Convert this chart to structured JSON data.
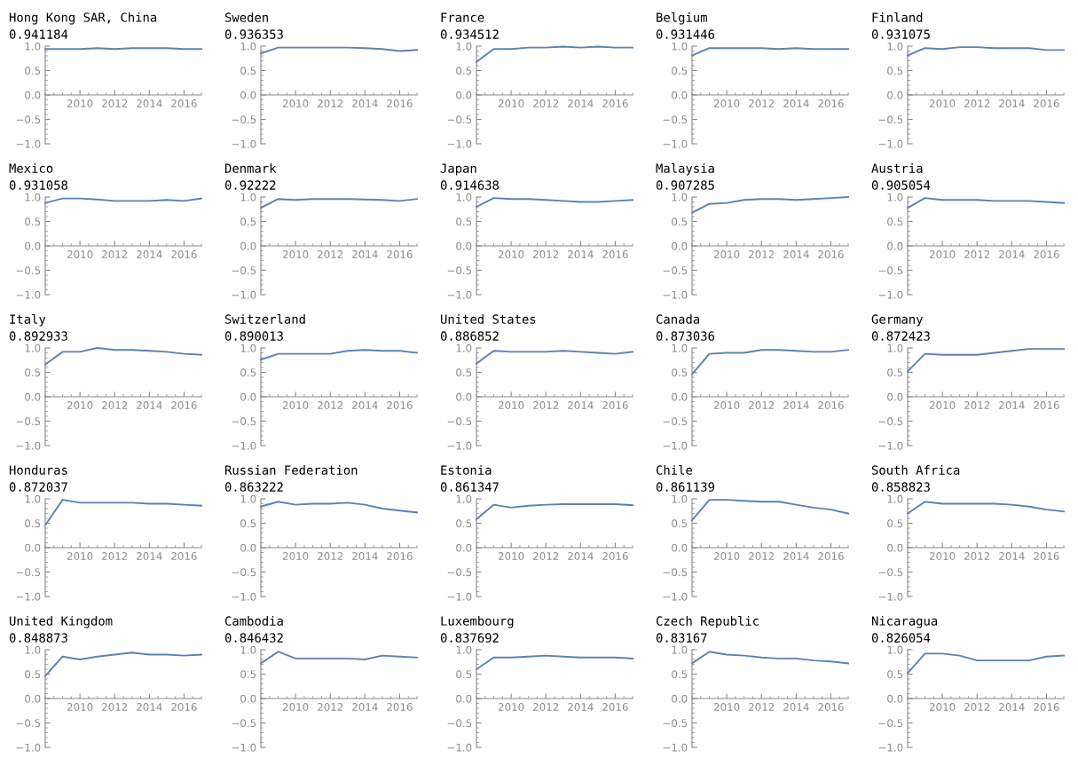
{
  "chart_data": [
    {
      "type": "line",
      "title": "Hong Kong SAR, China",
      "subtitle": "0.941184",
      "x": [
        2008,
        2009,
        2010,
        2011,
        2012,
        2013,
        2014,
        2015,
        2016,
        2017
      ],
      "values": [
        0.94,
        0.94,
        0.94,
        0.96,
        0.94,
        0.96,
        0.96,
        0.96,
        0.94,
        0.94
      ],
      "color": "#5e81b5",
      "xlim": [
        2008,
        2017
      ],
      "ylim": [
        -1,
        1
      ],
      "xticks": [
        2010,
        2012,
        2014,
        2016
      ],
      "yticks": [
        {
          "value": -1,
          "label": "−1.0"
        },
        {
          "value": -0.5,
          "label": "−0.5"
        },
        {
          "value": 0,
          "label": "0.0"
        },
        {
          "value": 0.5,
          "label": "0.5"
        },
        {
          "value": 1,
          "label": "1.0"
        }
      ],
      "grid": false
    },
    {
      "type": "line",
      "title": "Sweden",
      "subtitle": "0.936353",
      "x": [
        2008,
        2009,
        2010,
        2011,
        2012,
        2013,
        2014,
        2015,
        2016,
        2017
      ],
      "values": [
        0.85,
        0.97,
        0.97,
        0.97,
        0.97,
        0.97,
        0.96,
        0.94,
        0.9,
        0.92
      ],
      "color": "#5e81b5",
      "xlim": [
        2008,
        2017
      ],
      "ylim": [
        -1,
        1
      ],
      "xticks": [
        2010,
        2012,
        2014,
        2016
      ],
      "yticks": [
        {
          "value": -1,
          "label": "−1.0"
        },
        {
          "value": -0.5,
          "label": "−0.5"
        },
        {
          "value": 0,
          "label": "0.0"
        },
        {
          "value": 0.5,
          "label": "0.5"
        },
        {
          "value": 1,
          "label": "1.0"
        }
      ],
      "grid": false
    },
    {
      "type": "line",
      "title": "France",
      "subtitle": "0.934512",
      "x": [
        2008,
        2009,
        2010,
        2011,
        2012,
        2013,
        2014,
        2015,
        2016,
        2017
      ],
      "values": [
        0.68,
        0.94,
        0.94,
        0.97,
        0.97,
        0.99,
        0.97,
        0.99,
        0.97,
        0.97
      ],
      "color": "#5e81b5",
      "xlim": [
        2008,
        2017
      ],
      "ylim": [
        -1,
        1
      ],
      "xticks": [
        2010,
        2012,
        2014,
        2016
      ],
      "yticks": [
        {
          "value": -1,
          "label": "−1.0"
        },
        {
          "value": -0.5,
          "label": "−0.5"
        },
        {
          "value": 0,
          "label": "0.0"
        },
        {
          "value": 0.5,
          "label": "0.5"
        },
        {
          "value": 1,
          "label": "1.0"
        }
      ],
      "grid": false
    },
    {
      "type": "line",
      "title": "Belgium",
      "subtitle": "0.931446",
      "x": [
        2008,
        2009,
        2010,
        2011,
        2012,
        2013,
        2014,
        2015,
        2016,
        2017
      ],
      "values": [
        0.81,
        0.96,
        0.96,
        0.96,
        0.96,
        0.94,
        0.96,
        0.94,
        0.94,
        0.94
      ],
      "color": "#5e81b5",
      "xlim": [
        2008,
        2017
      ],
      "ylim": [
        -1,
        1
      ],
      "xticks": [
        2010,
        2012,
        2014,
        2016
      ],
      "yticks": [
        {
          "value": -1,
          "label": "−1.0"
        },
        {
          "value": -0.5,
          "label": "−0.5"
        },
        {
          "value": 0,
          "label": "0.0"
        },
        {
          "value": 0.5,
          "label": "0.5"
        },
        {
          "value": 1,
          "label": "1.0"
        }
      ],
      "grid": false
    },
    {
      "type": "line",
      "title": "Finland",
      "subtitle": "0.931075",
      "x": [
        2008,
        2009,
        2010,
        2011,
        2012,
        2013,
        2014,
        2015,
        2016,
        2017
      ],
      "values": [
        0.81,
        0.96,
        0.94,
        0.98,
        0.98,
        0.96,
        0.96,
        0.96,
        0.92,
        0.92
      ],
      "color": "#5e81b5",
      "xlim": [
        2008,
        2017
      ],
      "ylim": [
        -1,
        1
      ],
      "xticks": [
        2010,
        2012,
        2014,
        2016
      ],
      "yticks": [
        {
          "value": -1,
          "label": "−1.0"
        },
        {
          "value": -0.5,
          "label": "−0.5"
        },
        {
          "value": 0,
          "label": "0.0"
        },
        {
          "value": 0.5,
          "label": "0.5"
        },
        {
          "value": 1,
          "label": "1.0"
        }
      ],
      "grid": false
    },
    {
      "type": "line",
      "title": "Mexico",
      "subtitle": "0.931058",
      "x": [
        2008,
        2009,
        2010,
        2011,
        2012,
        2013,
        2014,
        2015,
        2016,
        2017
      ],
      "values": [
        0.88,
        0.97,
        0.97,
        0.95,
        0.92,
        0.92,
        0.92,
        0.94,
        0.92,
        0.97
      ],
      "color": "#5e81b5",
      "xlim": [
        2008,
        2017
      ],
      "ylim": [
        -1,
        1
      ],
      "xticks": [
        2010,
        2012,
        2014,
        2016
      ],
      "yticks": [
        {
          "value": -1,
          "label": "−1.0"
        },
        {
          "value": -0.5,
          "label": "−0.5"
        },
        {
          "value": 0,
          "label": "0.0"
        },
        {
          "value": 0.5,
          "label": "0.5"
        },
        {
          "value": 1,
          "label": "1.0"
        }
      ],
      "grid": false
    },
    {
      "type": "line",
      "title": "Denmark",
      "subtitle": "0.92222",
      "x": [
        2008,
        2009,
        2010,
        2011,
        2012,
        2013,
        2014,
        2015,
        2016,
        2017
      ],
      "values": [
        0.78,
        0.96,
        0.94,
        0.96,
        0.96,
        0.96,
        0.95,
        0.94,
        0.92,
        0.96
      ],
      "color": "#5e81b5",
      "xlim": [
        2008,
        2017
      ],
      "ylim": [
        -1,
        1
      ],
      "xticks": [
        2010,
        2012,
        2014,
        2016
      ],
      "yticks": [
        {
          "value": -1,
          "label": "−1.0"
        },
        {
          "value": -0.5,
          "label": "−0.5"
        },
        {
          "value": 0,
          "label": "0.0"
        },
        {
          "value": 0.5,
          "label": "0.5"
        },
        {
          "value": 1,
          "label": "1.0"
        }
      ],
      "grid": false
    },
    {
      "type": "line",
      "title": "Japan",
      "subtitle": "0.914638",
      "x": [
        2008,
        2009,
        2010,
        2011,
        2012,
        2013,
        2014,
        2015,
        2016,
        2017
      ],
      "values": [
        0.8,
        0.98,
        0.96,
        0.96,
        0.94,
        0.92,
        0.9,
        0.9,
        0.92,
        0.94
      ],
      "color": "#5e81b5",
      "xlim": [
        2008,
        2017
      ],
      "ylim": [
        -1,
        1
      ],
      "xticks": [
        2010,
        2012,
        2014,
        2016
      ],
      "yticks": [
        {
          "value": -1,
          "label": "−1.0"
        },
        {
          "value": -0.5,
          "label": "−0.5"
        },
        {
          "value": 0,
          "label": "0.0"
        },
        {
          "value": 0.5,
          "label": "0.5"
        },
        {
          "value": 1,
          "label": "1.0"
        }
      ],
      "grid": false
    },
    {
      "type": "line",
      "title": "Malaysia",
      "subtitle": "0.907285",
      "x": [
        2008,
        2009,
        2010,
        2011,
        2012,
        2013,
        2014,
        2015,
        2016,
        2017
      ],
      "values": [
        0.68,
        0.86,
        0.88,
        0.94,
        0.96,
        0.96,
        0.94,
        0.96,
        0.98,
        1.0
      ],
      "color": "#5e81b5",
      "xlim": [
        2008,
        2017
      ],
      "ylim": [
        -1,
        1
      ],
      "xticks": [
        2010,
        2012,
        2014,
        2016
      ],
      "yticks": [
        {
          "value": -1,
          "label": "−1.0"
        },
        {
          "value": -0.5,
          "label": "−0.5"
        },
        {
          "value": 0,
          "label": "0.0"
        },
        {
          "value": 0.5,
          "label": "0.5"
        },
        {
          "value": 1,
          "label": "1.0"
        }
      ],
      "grid": false
    },
    {
      "type": "line",
      "title": "Austria",
      "subtitle": "0.905054",
      "x": [
        2008,
        2009,
        2010,
        2011,
        2012,
        2013,
        2014,
        2015,
        2016,
        2017
      ],
      "values": [
        0.78,
        0.98,
        0.94,
        0.94,
        0.94,
        0.92,
        0.92,
        0.92,
        0.9,
        0.88
      ],
      "color": "#5e81b5",
      "xlim": [
        2008,
        2017
      ],
      "ylim": [
        -1,
        1
      ],
      "xticks": [
        2010,
        2012,
        2014,
        2016
      ],
      "yticks": [
        {
          "value": -1,
          "label": "−1.0"
        },
        {
          "value": -0.5,
          "label": "−0.5"
        },
        {
          "value": 0,
          "label": "0.0"
        },
        {
          "value": 0.5,
          "label": "0.5"
        },
        {
          "value": 1,
          "label": "1.0"
        }
      ],
      "grid": false
    },
    {
      "type": "line",
      "title": "Italy",
      "subtitle": "0.892933",
      "x": [
        2008,
        2009,
        2010,
        2011,
        2012,
        2013,
        2014,
        2015,
        2016,
        2017
      ],
      "values": [
        0.66,
        0.92,
        0.92,
        1.0,
        0.96,
        0.96,
        0.94,
        0.92,
        0.88,
        0.86
      ],
      "color": "#5e81b5",
      "xlim": [
        2008,
        2017
      ],
      "ylim": [
        -1,
        1
      ],
      "xticks": [
        2010,
        2012,
        2014,
        2016
      ],
      "yticks": [
        {
          "value": -1,
          "label": "−1.0"
        },
        {
          "value": -0.5,
          "label": "−0.5"
        },
        {
          "value": 0,
          "label": "0.0"
        },
        {
          "value": 0.5,
          "label": "0.5"
        },
        {
          "value": 1,
          "label": "1.0"
        }
      ],
      "grid": false
    },
    {
      "type": "line",
      "title": "Switzerland",
      "subtitle": "0.890013",
      "x": [
        2008,
        2009,
        2010,
        2011,
        2012,
        2013,
        2014,
        2015,
        2016,
        2017
      ],
      "values": [
        0.76,
        0.88,
        0.88,
        0.88,
        0.88,
        0.94,
        0.96,
        0.94,
        0.94,
        0.9
      ],
      "color": "#5e81b5",
      "xlim": [
        2008,
        2017
      ],
      "ylim": [
        -1,
        1
      ],
      "xticks": [
        2010,
        2012,
        2014,
        2016
      ],
      "yticks": [
        {
          "value": -1,
          "label": "−1.0"
        },
        {
          "value": -0.5,
          "label": "−0.5"
        },
        {
          "value": 0,
          "label": "0.0"
        },
        {
          "value": 0.5,
          "label": "0.5"
        },
        {
          "value": 1,
          "label": "1.0"
        }
      ],
      "grid": false
    },
    {
      "type": "line",
      "title": "United States",
      "subtitle": "0.886852",
      "x": [
        2008,
        2009,
        2010,
        2011,
        2012,
        2013,
        2014,
        2015,
        2016,
        2017
      ],
      "values": [
        0.68,
        0.94,
        0.92,
        0.92,
        0.92,
        0.94,
        0.92,
        0.9,
        0.88,
        0.92
      ],
      "color": "#5e81b5",
      "xlim": [
        2008,
        2017
      ],
      "ylim": [
        -1,
        1
      ],
      "xticks": [
        2010,
        2012,
        2014,
        2016
      ],
      "yticks": [
        {
          "value": -1,
          "label": "−1.0"
        },
        {
          "value": -0.5,
          "label": "−0.5"
        },
        {
          "value": 0,
          "label": "0.0"
        },
        {
          "value": 0.5,
          "label": "0.5"
        },
        {
          "value": 1,
          "label": "1.0"
        }
      ],
      "grid": false
    },
    {
      "type": "line",
      "title": "Canada",
      "subtitle": "0.873036",
      "x": [
        2008,
        2009,
        2010,
        2011,
        2012,
        2013,
        2014,
        2015,
        2016,
        2017
      ],
      "values": [
        0.46,
        0.88,
        0.9,
        0.9,
        0.96,
        0.96,
        0.94,
        0.92,
        0.92,
        0.96
      ],
      "color": "#5e81b5",
      "xlim": [
        2008,
        2017
      ],
      "ylim": [
        -1,
        1
      ],
      "xticks": [
        2010,
        2012,
        2014,
        2016
      ],
      "yticks": [
        {
          "value": -1,
          "label": "−1.0"
        },
        {
          "value": -0.5,
          "label": "−0.5"
        },
        {
          "value": 0,
          "label": "0.0"
        },
        {
          "value": 0.5,
          "label": "0.5"
        },
        {
          "value": 1,
          "label": "1.0"
        }
      ],
      "grid": false
    },
    {
      "type": "line",
      "title": "Germany",
      "subtitle": "0.872423",
      "x": [
        2008,
        2009,
        2010,
        2011,
        2012,
        2013,
        2014,
        2015,
        2016,
        2017
      ],
      "values": [
        0.52,
        0.88,
        0.86,
        0.86,
        0.86,
        0.9,
        0.94,
        0.98,
        0.98,
        0.98
      ],
      "color": "#5e81b5",
      "xlim": [
        2008,
        2017
      ],
      "ylim": [
        -1,
        1
      ],
      "xticks": [
        2010,
        2012,
        2014,
        2016
      ],
      "yticks": [
        {
          "value": -1,
          "label": "−1.0"
        },
        {
          "value": -0.5,
          "label": "−0.5"
        },
        {
          "value": 0,
          "label": "0.0"
        },
        {
          "value": 0.5,
          "label": "0.5"
        },
        {
          "value": 1,
          "label": "1.0"
        }
      ],
      "grid": false
    },
    {
      "type": "line",
      "title": "Honduras",
      "subtitle": "0.872037",
      "x": [
        2008,
        2009,
        2010,
        2011,
        2012,
        2013,
        2014,
        2015,
        2016,
        2017
      ],
      "values": [
        0.46,
        0.98,
        0.92,
        0.92,
        0.92,
        0.92,
        0.9,
        0.9,
        0.88,
        0.86
      ],
      "color": "#5e81b5",
      "xlim": [
        2008,
        2017
      ],
      "ylim": [
        -1,
        1
      ],
      "xticks": [
        2010,
        2012,
        2014,
        2016
      ],
      "yticks": [
        {
          "value": -1,
          "label": "−1.0"
        },
        {
          "value": -0.5,
          "label": "−0.5"
        },
        {
          "value": 0,
          "label": "0.0"
        },
        {
          "value": 0.5,
          "label": "0.5"
        },
        {
          "value": 1,
          "label": "1.0"
        }
      ],
      "grid": false
    },
    {
      "type": "line",
      "title": "Russian Federation",
      "subtitle": "0.863222",
      "x": [
        2008,
        2009,
        2010,
        2011,
        2012,
        2013,
        2014,
        2015,
        2016,
        2017
      ],
      "values": [
        0.84,
        0.94,
        0.88,
        0.9,
        0.9,
        0.92,
        0.88,
        0.8,
        0.76,
        0.72
      ],
      "color": "#5e81b5",
      "xlim": [
        2008,
        2017
      ],
      "ylim": [
        -1,
        1
      ],
      "xticks": [
        2010,
        2012,
        2014,
        2016
      ],
      "yticks": [
        {
          "value": -1,
          "label": "−1.0"
        },
        {
          "value": -0.5,
          "label": "−0.5"
        },
        {
          "value": 0,
          "label": "0.0"
        },
        {
          "value": 0.5,
          "label": "0.5"
        },
        {
          "value": 1,
          "label": "1.0"
        }
      ],
      "grid": false
    },
    {
      "type": "line",
      "title": "Estonia",
      "subtitle": "0.861347",
      "x": [
        2008,
        2009,
        2010,
        2011,
        2012,
        2013,
        2014,
        2015,
        2016,
        2017
      ],
      "values": [
        0.58,
        0.88,
        0.82,
        0.86,
        0.88,
        0.89,
        0.89,
        0.89,
        0.89,
        0.87
      ],
      "color": "#5e81b5",
      "xlim": [
        2008,
        2017
      ],
      "ylim": [
        -1,
        1
      ],
      "xticks": [
        2010,
        2012,
        2014,
        2016
      ],
      "yticks": [
        {
          "value": -1,
          "label": "−1.0"
        },
        {
          "value": -0.5,
          "label": "−0.5"
        },
        {
          "value": 0,
          "label": "0.0"
        },
        {
          "value": 0.5,
          "label": "0.5"
        },
        {
          "value": 1,
          "label": "1.0"
        }
      ],
      "grid": false
    },
    {
      "type": "line",
      "title": "Chile",
      "subtitle": "0.861139",
      "x": [
        2008,
        2009,
        2010,
        2011,
        2012,
        2013,
        2014,
        2015,
        2016,
        2017
      ],
      "values": [
        0.56,
        0.98,
        0.98,
        0.96,
        0.94,
        0.94,
        0.88,
        0.82,
        0.78,
        0.7
      ],
      "color": "#5e81b5",
      "xlim": [
        2008,
        2017
      ],
      "ylim": [
        -1,
        1
      ],
      "xticks": [
        2010,
        2012,
        2014,
        2016
      ],
      "yticks": [
        {
          "value": -1,
          "label": "−1.0"
        },
        {
          "value": -0.5,
          "label": "−0.5"
        },
        {
          "value": 0,
          "label": "0.0"
        },
        {
          "value": 0.5,
          "label": "0.5"
        },
        {
          "value": 1,
          "label": "1.0"
        }
      ],
      "grid": false
    },
    {
      "type": "line",
      "title": "South Africa",
      "subtitle": "0.858823",
      "x": [
        2008,
        2009,
        2010,
        2011,
        2012,
        2013,
        2014,
        2015,
        2016,
        2017
      ],
      "values": [
        0.7,
        0.94,
        0.9,
        0.9,
        0.9,
        0.9,
        0.88,
        0.84,
        0.78,
        0.74
      ],
      "color": "#5e81b5",
      "xlim": [
        2008,
        2017
      ],
      "ylim": [
        -1,
        1
      ],
      "xticks": [
        2010,
        2012,
        2014,
        2016
      ],
      "yticks": [
        {
          "value": -1,
          "label": "−1.0"
        },
        {
          "value": -0.5,
          "label": "−0.5"
        },
        {
          "value": 0,
          "label": "0.0"
        },
        {
          "value": 0.5,
          "label": "0.5"
        },
        {
          "value": 1,
          "label": "1.0"
        }
      ],
      "grid": false
    },
    {
      "type": "line",
      "title": "United Kingdom",
      "subtitle": "0.848873",
      "x": [
        2008,
        2009,
        2010,
        2011,
        2012,
        2013,
        2014,
        2015,
        2016,
        2017
      ],
      "values": [
        0.46,
        0.86,
        0.8,
        0.86,
        0.9,
        0.94,
        0.9,
        0.9,
        0.88,
        0.9
      ],
      "color": "#5e81b5",
      "xlim": [
        2008,
        2017
      ],
      "ylim": [
        -1,
        1
      ],
      "xticks": [
        2010,
        2012,
        2014,
        2016
      ],
      "yticks": [
        {
          "value": -1,
          "label": "−1.0"
        },
        {
          "value": -0.5,
          "label": "−0.5"
        },
        {
          "value": 0,
          "label": "0.0"
        },
        {
          "value": 0.5,
          "label": "0.5"
        },
        {
          "value": 1,
          "label": "1.0"
        }
      ],
      "grid": false
    },
    {
      "type": "line",
      "title": "Cambodia",
      "subtitle": "0.846432",
      "x": [
        2008,
        2009,
        2010,
        2011,
        2012,
        2013,
        2014,
        2015,
        2016,
        2017
      ],
      "values": [
        0.72,
        0.96,
        0.82,
        0.82,
        0.82,
        0.82,
        0.8,
        0.88,
        0.86,
        0.84
      ],
      "color": "#5e81b5",
      "xlim": [
        2008,
        2017
      ],
      "ylim": [
        -1,
        1
      ],
      "xticks": [
        2010,
        2012,
        2014,
        2016
      ],
      "yticks": [
        {
          "value": -1,
          "label": "−1.0"
        },
        {
          "value": -0.5,
          "label": "−0.5"
        },
        {
          "value": 0,
          "label": "0.0"
        },
        {
          "value": 0.5,
          "label": "0.5"
        },
        {
          "value": 1,
          "label": "1.0"
        }
      ],
      "grid": false
    },
    {
      "type": "line",
      "title": "Luxembourg",
      "subtitle": "0.837692",
      "x": [
        2008,
        2009,
        2010,
        2011,
        2012,
        2013,
        2014,
        2015,
        2016,
        2017
      ],
      "values": [
        0.6,
        0.84,
        0.84,
        0.86,
        0.88,
        0.86,
        0.84,
        0.84,
        0.84,
        0.82
      ],
      "color": "#5e81b5",
      "xlim": [
        2008,
        2017
      ],
      "ylim": [
        -1,
        1
      ],
      "xticks": [
        2010,
        2012,
        2014,
        2016
      ],
      "yticks": [
        {
          "value": -1,
          "label": "−1.0"
        },
        {
          "value": -0.5,
          "label": "−0.5"
        },
        {
          "value": 0,
          "label": "0.0"
        },
        {
          "value": 0.5,
          "label": "0.5"
        },
        {
          "value": 1,
          "label": "1.0"
        }
      ],
      "grid": false
    },
    {
      "type": "line",
      "title": "Czech Republic",
      "subtitle": "0.83167",
      "x": [
        2008,
        2009,
        2010,
        2011,
        2012,
        2013,
        2014,
        2015,
        2016,
        2017
      ],
      "values": [
        0.72,
        0.96,
        0.9,
        0.88,
        0.84,
        0.82,
        0.82,
        0.78,
        0.76,
        0.72
      ],
      "color": "#5e81b5",
      "xlim": [
        2008,
        2017
      ],
      "ylim": [
        -1,
        1
      ],
      "xticks": [
        2010,
        2012,
        2014,
        2016
      ],
      "yticks": [
        {
          "value": -1,
          "label": "−1.0"
        },
        {
          "value": -0.5,
          "label": "−0.5"
        },
        {
          "value": 0,
          "label": "0.0"
        },
        {
          "value": 0.5,
          "label": "0.5"
        },
        {
          "value": 1,
          "label": "1.0"
        }
      ],
      "grid": false
    },
    {
      "type": "line",
      "title": "Nicaragua",
      "subtitle": "0.826054",
      "x": [
        2008,
        2009,
        2010,
        2011,
        2012,
        2013,
        2014,
        2015,
        2016,
        2017
      ],
      "values": [
        0.52,
        0.92,
        0.92,
        0.88,
        0.78,
        0.78,
        0.78,
        0.78,
        0.86,
        0.88
      ],
      "color": "#5e81b5",
      "xlim": [
        2008,
        2017
      ],
      "ylim": [
        -1,
        1
      ],
      "xticks": [
        2010,
        2012,
        2014,
        2016
      ],
      "yticks": [
        {
          "value": -1,
          "label": "−1.0"
        },
        {
          "value": -0.5,
          "label": "−0.5"
        },
        {
          "value": 0,
          "label": "0.0"
        },
        {
          "value": 0.5,
          "label": "0.5"
        },
        {
          "value": 1,
          "label": "1.0"
        }
      ],
      "grid": false
    }
  ]
}
